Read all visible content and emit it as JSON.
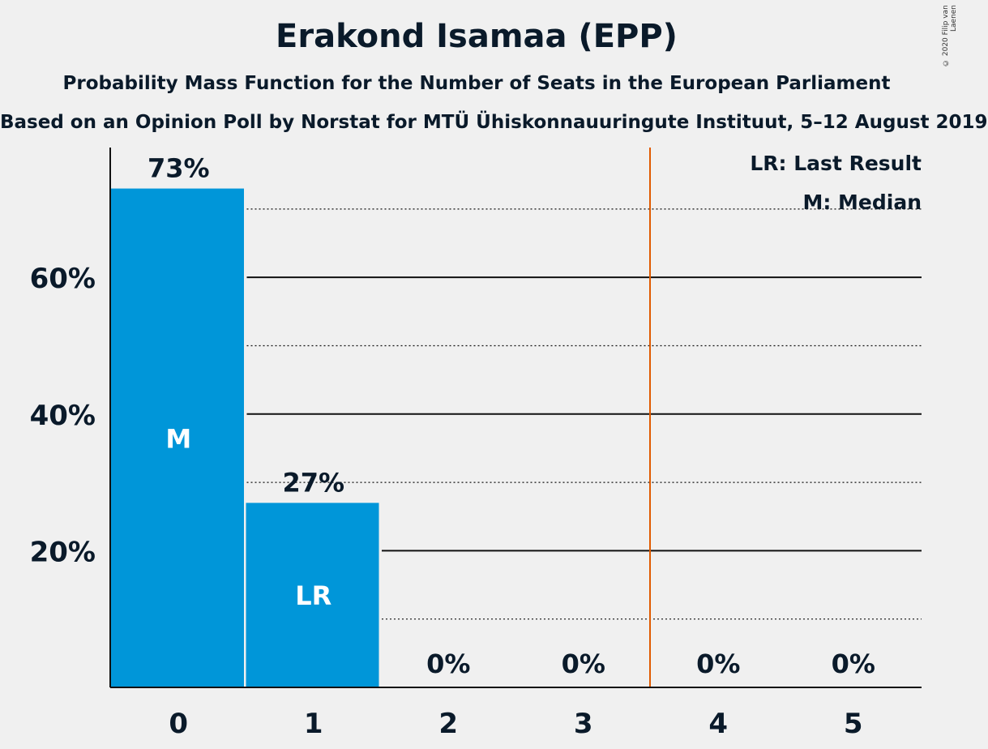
{
  "title": "Erakond Isamaa (EPP)",
  "subtitle": "Probability Mass Function for the Number of Seats in the European Parliament",
  "subtitle2": "Based on an Opinion Poll by Norstat for MTÜ Ühiskonnauuringute Instituut, 5–12 August 2019",
  "copyright": "© 2020 Filip van Laenen",
  "colors": {
    "bar": "#0096d9",
    "last_result_line": "#e05a00",
    "background": "#f0f0f0",
    "text": "#0a1a2a"
  },
  "chart_data": {
    "type": "bar",
    "categories": [
      "0",
      "1",
      "2",
      "3",
      "4",
      "5"
    ],
    "values": [
      73,
      27,
      0,
      0,
      0,
      0
    ],
    "value_labels": [
      "73%",
      "27%",
      "0%",
      "0%",
      "0%",
      "0%"
    ],
    "bar_annotations": [
      "M",
      "LR",
      "",
      "",
      "",
      ""
    ],
    "yticks": [
      20,
      40,
      60
    ],
    "ytick_labels": [
      "20%",
      "40%",
      "60%"
    ],
    "minor_gridlines": [
      10,
      30,
      50,
      70
    ],
    "ylim": [
      0,
      79
    ],
    "last_result_after_category": 3,
    "legend": [
      "LR: Last Result",
      "M: Median"
    ],
    "legend_position": "top-right",
    "grid": true
  }
}
